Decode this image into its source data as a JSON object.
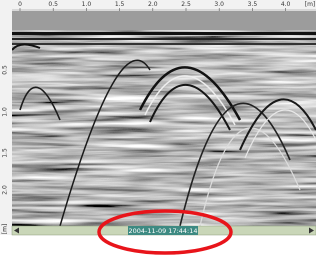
{
  "top_axis": {
    "labels": [
      "0",
      "0.5",
      "1.0",
      "1.5",
      "2.0",
      "2.5",
      "3.0",
      "3.5",
      "4.0",
      "[m]"
    ]
  },
  "left_axis": {
    "labels": [
      "0.5",
      "1.0",
      "1.5",
      "2.0",
      "[m]"
    ]
  },
  "status": {
    "timestamp": "2004-11-09   17:44:14"
  }
}
